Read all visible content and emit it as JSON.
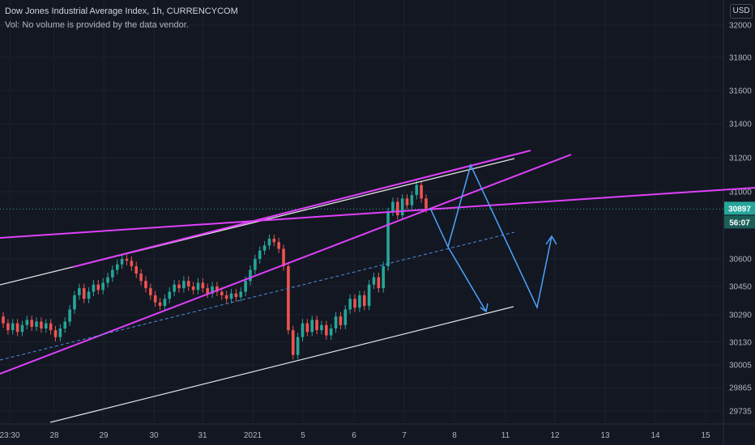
{
  "header": {
    "title": "Dow Jones Industrial Average Index, 1h, CURRENCYCOM",
    "volume_note": "Vol: No volume is provided by the data vendor."
  },
  "currency": "USD",
  "price_tag": {
    "price": "30897",
    "countdown": "56:07",
    "color": "#26a69a"
  },
  "colors": {
    "background": "#131722",
    "up": "#26a69a",
    "down": "#ef5350",
    "magenta": "#e040fb",
    "white_line": "#e0e0e0",
    "blue_projection": "#4aa3ff",
    "dashed_mid": "#4a90d9"
  },
  "chart_data": {
    "type": "candlestick",
    "title": "Dow Jones Industrial Average Index, 1h, CURRENCYCOM",
    "y_ticks": [
      32000,
      31800,
      31600,
      31400,
      31200,
      31000,
      30600,
      30450,
      30290,
      30130,
      30005,
      29865,
      29735
    ],
    "ylim": [
      29680,
      32070
    ],
    "x_ticks": [
      "23:30",
      "28",
      "29",
      "30",
      "31",
      "2021",
      "5",
      "6",
      "7",
      "8",
      "11",
      "12",
      "13",
      "14",
      "15"
    ],
    "last_price": 30897,
    "candles_approx": [
      {
        "o": 30280,
        "c": 30240
      },
      {
        "o": 30240,
        "c": 30200
      },
      {
        "o": 30200,
        "c": 30240
      },
      {
        "o": 30240,
        "c": 30190
      },
      {
        "o": 30190,
        "c": 30230
      },
      {
        "o": 30230,
        "c": 30260
      },
      {
        "o": 30260,
        "c": 30220
      },
      {
        "o": 30220,
        "c": 30250
      },
      {
        "o": 30250,
        "c": 30210
      },
      {
        "o": 30210,
        "c": 30240
      },
      {
        "o": 30240,
        "c": 30200
      },
      {
        "o": 30200,
        "c": 30160
      },
      {
        "o": 30160,
        "c": 30210
      },
      {
        "o": 30210,
        "c": 30250
      },
      {
        "o": 30250,
        "c": 30320
      },
      {
        "o": 30320,
        "c": 30400
      },
      {
        "o": 30400,
        "c": 30440
      },
      {
        "o": 30440,
        "c": 30380
      },
      {
        "o": 30380,
        "c": 30420
      },
      {
        "o": 30420,
        "c": 30460
      },
      {
        "o": 30460,
        "c": 30430
      },
      {
        "o": 30430,
        "c": 30470
      },
      {
        "o": 30470,
        "c": 30500
      },
      {
        "o": 30500,
        "c": 30540
      },
      {
        "o": 30540,
        "c": 30570
      },
      {
        "o": 30570,
        "c": 30600
      },
      {
        "o": 30600,
        "c": 30590
      },
      {
        "o": 30590,
        "c": 30560
      },
      {
        "o": 30560,
        "c": 30520
      },
      {
        "o": 30520,
        "c": 30480
      },
      {
        "o": 30480,
        "c": 30440
      },
      {
        "o": 30440,
        "c": 30400
      },
      {
        "o": 30400,
        "c": 30360
      },
      {
        "o": 30360,
        "c": 30340
      },
      {
        "o": 30340,
        "c": 30380
      },
      {
        "o": 30380,
        "c": 30420
      },
      {
        "o": 30420,
        "c": 30460
      },
      {
        "o": 30460,
        "c": 30440
      },
      {
        "o": 30440,
        "c": 30480
      },
      {
        "o": 30480,
        "c": 30450
      },
      {
        "o": 30450,
        "c": 30430
      },
      {
        "o": 30430,
        "c": 30470
      },
      {
        "o": 30470,
        "c": 30440
      },
      {
        "o": 30440,
        "c": 30410
      },
      {
        "o": 30410,
        "c": 30450
      },
      {
        "o": 30450,
        "c": 30420
      },
      {
        "o": 30420,
        "c": 30400
      },
      {
        "o": 30400,
        "c": 30380
      },
      {
        "o": 30380,
        "c": 30410
      },
      {
        "o": 30410,
        "c": 30390
      },
      {
        "o": 30390,
        "c": 30420
      },
      {
        "o": 30420,
        "c": 30480
      },
      {
        "o": 30480,
        "c": 30540
      },
      {
        "o": 30540,
        "c": 30600
      },
      {
        "o": 30600,
        "c": 30650
      },
      {
        "o": 30650,
        "c": 30680
      },
      {
        "o": 30680,
        "c": 30720
      },
      {
        "o": 30720,
        "c": 30700
      },
      {
        "o": 30700,
        "c": 30660
      },
      {
        "o": 30660,
        "c": 30560
      },
      {
        "o": 30560,
        "c": 30200
      },
      {
        "o": 30200,
        "c": 30060
      },
      {
        "o": 30060,
        "c": 30160
      },
      {
        "o": 30160,
        "c": 30240
      },
      {
        "o": 30240,
        "c": 30190
      },
      {
        "o": 30190,
        "c": 30260
      },
      {
        "o": 30260,
        "c": 30200
      },
      {
        "o": 30200,
        "c": 30230
      },
      {
        "o": 30230,
        "c": 30170
      },
      {
        "o": 30170,
        "c": 30210
      },
      {
        "o": 30210,
        "c": 30280
      },
      {
        "o": 30280,
        "c": 30230
      },
      {
        "o": 30230,
        "c": 30320
      },
      {
        "o": 30320,
        "c": 30380
      },
      {
        "o": 30380,
        "c": 30330
      },
      {
        "o": 30330,
        "c": 30400
      },
      {
        "o": 30400,
        "c": 30340
      },
      {
        "o": 30340,
        "c": 30460
      },
      {
        "o": 30460,
        "c": 30500
      },
      {
        "o": 30500,
        "c": 30440
      },
      {
        "o": 30440,
        "c": 30560
      },
      {
        "o": 30560,
        "c": 30880
      },
      {
        "o": 30880,
        "c": 30940
      },
      {
        "o": 30940,
        "c": 30860
      },
      {
        "o": 30860,
        "c": 30960
      },
      {
        "o": 30960,
        "c": 30920
      },
      {
        "o": 30920,
        "c": 30980
      },
      {
        "o": 30980,
        "c": 31040
      },
      {
        "o": 31040,
        "c": 30960
      },
      {
        "o": 30960,
        "c": 30900
      }
    ]
  }
}
